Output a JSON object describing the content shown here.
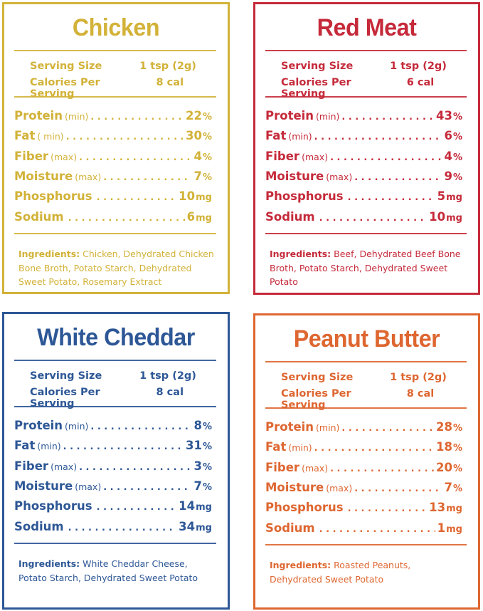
{
  "colors": {
    "chicken": "#d2b238",
    "red_meat": "#c52a3a",
    "white_cheddar": "#2d5796",
    "peanut_butter": "#de6630"
  },
  "panels": [
    {
      "id": "chicken",
      "title": "Chicken",
      "serving_size_label": "Serving Size",
      "serving_size": "1 tsp (2g)",
      "calories_label": "Calories Per Serving",
      "calories": "8 cal",
      "nutrients": [
        {
          "name": "Protein",
          "qualifier": "(min)",
          "value": "22",
          "unit": "%"
        },
        {
          "name": "Fat",
          "qualifier": "( min)",
          "value": "30",
          "unit": "%"
        },
        {
          "name": "Fiber",
          "qualifier": "(max)",
          "value": "4",
          "unit": "%"
        },
        {
          "name": "Moisture",
          "qualifier": "(max)",
          "value": "7",
          "unit": "%"
        },
        {
          "name": "Phosphorus",
          "qualifier": "",
          "value": "10",
          "unit": "mg"
        },
        {
          "name": "Sodium",
          "qualifier": "",
          "value": "6",
          "unit": "mg"
        }
      ],
      "ingredients_label": "Ingredients:",
      "ingredients": "Chicken, Dehydrated Chicken Bone Broth, Potato Starch, Dehydrated Sweet Potato, Rosemary Extract"
    },
    {
      "id": "red_meat",
      "title": "Red Meat",
      "serving_size_label": "Serving Size",
      "serving_size": "1 tsp (2g)",
      "calories_label": "Calories Per Serving",
      "calories": "6 cal",
      "nutrients": [
        {
          "name": "Protein",
          "qualifier": "(min)",
          "value": "43",
          "unit": "%"
        },
        {
          "name": "Fat",
          "qualifier": "(min)",
          "value": "6",
          "unit": "%"
        },
        {
          "name": "Fiber",
          "qualifier": "(max)",
          "value": "4",
          "unit": "%"
        },
        {
          "name": "Moisture",
          "qualifier": "(max)",
          "value": "9",
          "unit": "%"
        },
        {
          "name": "Phosphorus",
          "qualifier": "",
          "value": "5",
          "unit": "mg"
        },
        {
          "name": "Sodium",
          "qualifier": "",
          "value": "10",
          "unit": "mg"
        }
      ],
      "ingredients_label": "Ingredients:",
      "ingredients": "Beef, Dehydrated Beef Bone Broth, Potato Starch, Dehydrated Sweet Potato"
    },
    {
      "id": "white_cheddar",
      "title": "White Cheddar",
      "serving_size_label": "Serving Size",
      "serving_size": "1 tsp (2g)",
      "calories_label": "Calories Per Serving",
      "calories": "8 cal",
      "nutrients": [
        {
          "name": "Protein",
          "qualifier": "(min)",
          "value": "8",
          "unit": "%"
        },
        {
          "name": "Fat",
          "qualifier": "(min)",
          "value": "31",
          "unit": "%"
        },
        {
          "name": "Fiber",
          "qualifier": "(max)",
          "value": "3",
          "unit": "%"
        },
        {
          "name": "Moisture",
          "qualifier": "(max)",
          "value": "7",
          "unit": "%"
        },
        {
          "name": "Phosphorus",
          "qualifier": "",
          "value": "14",
          "unit": "mg"
        },
        {
          "name": "Sodium",
          "qualifier": "",
          "value": "34",
          "unit": "mg"
        }
      ],
      "ingredients_label": "Ingredients:",
      "ingredients": "White Cheddar Cheese, Potato Starch, Dehydrated Sweet Potato"
    },
    {
      "id": "peanut_butter",
      "title": "Peanut Butter",
      "serving_size_label": "Serving Size",
      "serving_size": "1 tsp (2g)",
      "calories_label": "Calories Per Serving",
      "calories": "8 cal",
      "nutrients": [
        {
          "name": "Protein",
          "qualifier": "(min)",
          "value": "28",
          "unit": "%"
        },
        {
          "name": "Fat",
          "qualifier": "(min)",
          "value": "18",
          "unit": "%"
        },
        {
          "name": "Fiber",
          "qualifier": "(max)",
          "value": "20",
          "unit": "%"
        },
        {
          "name": "Moisture",
          "qualifier": "(max)",
          "value": "7",
          "unit": "%"
        },
        {
          "name": "Phosphorus",
          "qualifier": "",
          "value": "13",
          "unit": "mg"
        },
        {
          "name": "Sodium",
          "qualifier": "",
          "value": "1",
          "unit": "mg"
        }
      ],
      "ingredients_label": "Ingredients:",
      "ingredients": "Roasted Peanuts, Dehydrated Sweet Potato"
    }
  ]
}
